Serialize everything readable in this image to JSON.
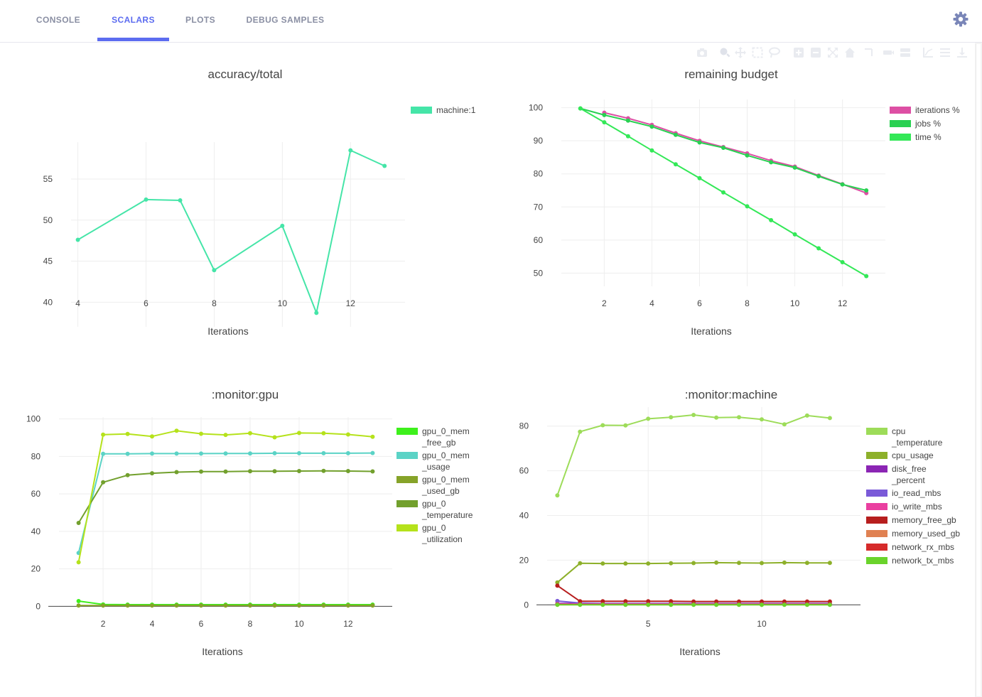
{
  "tabs": [
    {
      "label": "CONSOLE"
    },
    {
      "label": "SCALARS"
    },
    {
      "label": "PLOTS"
    },
    {
      "label": "DEBUG SAMPLES"
    }
  ],
  "active_tab": "SCALARS",
  "toolbar_icons": [
    "camera-icon",
    "zoom-icon",
    "pan-icon",
    "box-select-icon",
    "lasso-icon",
    "zoom-in-icon",
    "zoom-out-icon",
    "autoscale-icon",
    "home-icon",
    "spike-lines-icon",
    "hover-closest-icon",
    "hover-compare-icon",
    "log-scale-icon",
    "table-icon",
    "download-icon"
  ],
  "settings_icon": "gear-icon",
  "chart_data": [
    {
      "type": "line",
      "title": "accuracy/total",
      "xlabel": "Iterations",
      "ylabel": "",
      "xlim": [
        3.8,
        13.6
      ],
      "ylim": [
        37,
        59.5
      ],
      "xticks": [
        4,
        6,
        8,
        10,
        12
      ],
      "yticks": [
        40,
        45,
        50,
        55
      ],
      "grid": true,
      "legend_position": "right",
      "series": [
        {
          "name": "machine:1",
          "color": "#45e5a8",
          "x": [
            4,
            6,
            7,
            8,
            10,
            11,
            12,
            13
          ],
          "y": [
            47.6,
            52.5,
            52.4,
            43.9,
            49.3,
            38.7,
            58.5,
            56.6
          ]
        }
      ]
    },
    {
      "type": "line",
      "title": "remaining budget",
      "xlabel": "Iterations",
      "ylabel": "",
      "xlim": [
        0.2,
        13.8
      ],
      "ylim": [
        46,
        102.5
      ],
      "xticks": [
        2,
        4,
        6,
        8,
        10,
        12
      ],
      "yticks": [
        50,
        60,
        70,
        80,
        90,
        100
      ],
      "grid": true,
      "legend_position": "right",
      "series": [
        {
          "name": "iterations %",
          "color": "#dd4fa4",
          "x": [
            2,
            3,
            4,
            5,
            6,
            7,
            8,
            9,
            10,
            11,
            12,
            13
          ],
          "y": [
            98.5,
            96.8,
            94.8,
            92.3,
            90.0,
            88.1,
            86.2,
            84.0,
            82.2,
            79.5,
            76.9,
            74.2
          ]
        },
        {
          "name": "jobs %",
          "color": "#29d152",
          "x": [
            1,
            2,
            3,
            4,
            5,
            6,
            7,
            8,
            9,
            10,
            11,
            12,
            13
          ],
          "y": [
            99.8,
            97.8,
            96.1,
            94.3,
            91.8,
            89.5,
            87.9,
            85.6,
            83.5,
            81.9,
            79.3,
            76.8,
            75.0
          ]
        },
        {
          "name": "time %",
          "color": "#33e857",
          "x": [
            1,
            2,
            3,
            4,
            5,
            6,
            7,
            8,
            9,
            10,
            11,
            12,
            13
          ],
          "y": [
            99.8,
            95.6,
            91.4,
            87.1,
            82.9,
            78.7,
            74.4,
            70.2,
            66.0,
            61.7,
            57.5,
            53.3,
            49.1
          ]
        }
      ]
    },
    {
      "type": "line",
      "title": ":monitor:gpu",
      "xlabel": "Iterations",
      "ylabel": "",
      "xlim": [
        0.2,
        13.8
      ],
      "ylim": [
        -1,
        101
      ],
      "xticks": [
        2,
        4,
        6,
        8,
        10,
        12
      ],
      "yticks": [
        0,
        20,
        40,
        60,
        80,
        100
      ],
      "grid": true,
      "legend_position": "right",
      "series": [
        {
          "name": "gpu_0_mem_free_gb",
          "legend_lines": [
            "gpu_0_mem",
            "_free_gb"
          ],
          "color": "#3ef01c",
          "x": [
            1,
            2,
            3,
            4,
            5,
            6,
            7,
            8,
            9,
            10,
            11,
            12,
            13
          ],
          "y": [
            2.8,
            1.0,
            0.9,
            0.9,
            0.9,
            0.9,
            0.9,
            0.9,
            0.9,
            0.9,
            0.9,
            0.9,
            0.9
          ]
        },
        {
          "name": "gpu_0_mem_usage",
          "legend_lines": [
            "gpu_0_mem",
            "_usage"
          ],
          "color": "#5bd3c6",
          "x": [
            1,
            2,
            3,
            4,
            5,
            6,
            7,
            8,
            9,
            10,
            11,
            12,
            13
          ],
          "y": [
            28.5,
            81.4,
            81.4,
            81.5,
            81.5,
            81.5,
            81.6,
            81.6,
            81.7,
            81.7,
            81.7,
            81.7,
            81.8
          ]
        },
        {
          "name": "gpu_0_mem_used_gb",
          "legend_lines": [
            "gpu_0_mem",
            "_used_gb"
          ],
          "color": "#86a329",
          "x": [
            1,
            2,
            3,
            4,
            5,
            6,
            7,
            8,
            9,
            10,
            11,
            12,
            13
          ],
          "y": [
            0.4,
            0.4,
            0.4,
            0.4,
            0.4,
            0.4,
            0.4,
            0.4,
            0.4,
            0.4,
            0.4,
            0.4,
            0.4
          ]
        },
        {
          "name": "gpu_0_temperature",
          "legend_lines": [
            "gpu_0",
            "_temperature"
          ],
          "color": "#72a02d",
          "x": [
            1,
            2,
            3,
            4,
            5,
            6,
            7,
            8,
            9,
            10,
            11,
            12,
            13
          ],
          "y": [
            44.5,
            66.2,
            70.0,
            71.0,
            71.6,
            71.9,
            71.9,
            72.1,
            72.1,
            72.2,
            72.3,
            72.2,
            72.0
          ]
        },
        {
          "name": "gpu_0_utilization",
          "legend_lines": [
            "gpu_0",
            "_utilization"
          ],
          "color": "#b5e21b",
          "x": [
            1,
            2,
            3,
            4,
            5,
            6,
            7,
            8,
            9,
            10,
            11,
            12,
            13
          ],
          "y": [
            23.5,
            91.6,
            92.0,
            90.7,
            93.7,
            92.1,
            91.5,
            92.4,
            90.2,
            92.5,
            92.4,
            91.7,
            90.5
          ]
        }
      ]
    },
    {
      "type": "line",
      "title": ":monitor:machine",
      "xlabel": "Iterations",
      "ylabel": "",
      "xlim": [
        0.55,
        14.35
      ],
      "ylim": [
        -1.5,
        88.5
      ],
      "xticks": [
        5,
        10
      ],
      "yticks": [
        0,
        20,
        40,
        60,
        80
      ],
      "grid": true,
      "legend_position": "right",
      "series": [
        {
          "name": "cpu_temperature",
          "legend_lines": [
            "cpu",
            "_temperature"
          ],
          "color": "#9ddc59",
          "x": [
            1,
            2,
            3,
            4,
            5,
            6,
            7,
            8,
            9,
            10,
            11,
            12,
            13
          ],
          "y": [
            49.0,
            77.5,
            80.4,
            80.3,
            83.3,
            84.0,
            85.0,
            83.8,
            84.0,
            83.0,
            80.8,
            84.7,
            83.6
          ]
        },
        {
          "name": "cpu_usage",
          "legend_lines": [
            "cpu_usage"
          ],
          "color": "#8db02a",
          "x": [
            1,
            2,
            3,
            4,
            5,
            6,
            7,
            8,
            9,
            10,
            11,
            12,
            13
          ],
          "y": [
            10.0,
            18.6,
            18.5,
            18.5,
            18.5,
            18.6,
            18.7,
            18.9,
            18.8,
            18.7,
            18.9,
            18.8,
            18.8
          ]
        },
        {
          "name": "disk_free_percent",
          "legend_lines": [
            "disk_free",
            "_percent"
          ],
          "color": "#8b25b4",
          "x": [
            1,
            2,
            3,
            4,
            5,
            6,
            7,
            8,
            9,
            10,
            11,
            12,
            13
          ],
          "y": [
            0.6,
            0.6,
            0.6,
            0.6,
            0.6,
            0.6,
            0.6,
            0.6,
            0.6,
            0.6,
            0.6,
            0.6,
            0.6
          ]
        },
        {
          "name": "io_read_mbs",
          "legend_lines": [
            "io_read_mbs"
          ],
          "color": "#7a5ad8",
          "x": [
            1,
            2,
            3,
            4,
            5,
            6,
            7,
            8,
            9,
            10,
            11,
            12,
            13
          ],
          "y": [
            1.7,
            0.8,
            0.6,
            0.6,
            0.6,
            0.6,
            0.6,
            0.6,
            0.6,
            0.6,
            0.6,
            0.6,
            0.6
          ]
        },
        {
          "name": "io_write_mbs",
          "legend_lines": [
            "io_write_mbs"
          ],
          "color": "#ea3fa0",
          "x": [
            1,
            2,
            3,
            4,
            5,
            6,
            7,
            8,
            9,
            10,
            11,
            12,
            13
          ],
          "y": [
            0.3,
            0.3,
            0.3,
            0.3,
            0.3,
            0.3,
            0.3,
            0.3,
            0.3,
            0.3,
            0.3,
            0.3,
            0.3
          ]
        },
        {
          "name": "memory_free_gb",
          "legend_lines": [
            "memory_free_gb"
          ],
          "color": "#b71e1e",
          "x": [
            1,
            2,
            3,
            4,
            5,
            6,
            7,
            8,
            9,
            10,
            11,
            12,
            13
          ],
          "y": [
            8.6,
            1.6,
            1.6,
            1.6,
            1.6,
            1.6,
            1.5,
            1.5,
            1.5,
            1.5,
            1.5,
            1.5,
            1.5
          ]
        },
        {
          "name": "memory_used_gb",
          "legend_lines": [
            "memory_used_gb"
          ],
          "color": "#e08152",
          "x": [
            1,
            2,
            3,
            4,
            5,
            6,
            7,
            8,
            9,
            10,
            11,
            12,
            13
          ],
          "y": [
            0.2,
            0.2,
            0.2,
            0.2,
            0.2,
            0.2,
            0.2,
            0.2,
            0.2,
            0.2,
            0.2,
            0.2,
            0.2
          ]
        },
        {
          "name": "network_rx_mbs",
          "legend_lines": [
            "network_rx_mbs"
          ],
          "color": "#d62b2b",
          "x": [
            1,
            2,
            3,
            4,
            5,
            6,
            7,
            8,
            9,
            10,
            11,
            12,
            13
          ],
          "y": [
            0.1,
            0.1,
            0.1,
            0.1,
            0.1,
            0.1,
            0.1,
            0.1,
            0.1,
            0.1,
            0.1,
            0.1,
            0.1
          ]
        },
        {
          "name": "network_tx_mbs",
          "legend_lines": [
            "network_tx_mbs"
          ],
          "color": "#6ad32b",
          "x": [
            1,
            2,
            3,
            4,
            5,
            6,
            7,
            8,
            9,
            10,
            11,
            12,
            13
          ],
          "y": [
            0.0,
            0.0,
            0.0,
            0.0,
            0.0,
            0.0,
            0.0,
            0.0,
            0.0,
            0.0,
            0.0,
            0.0,
            0.0
          ]
        }
      ]
    }
  ]
}
